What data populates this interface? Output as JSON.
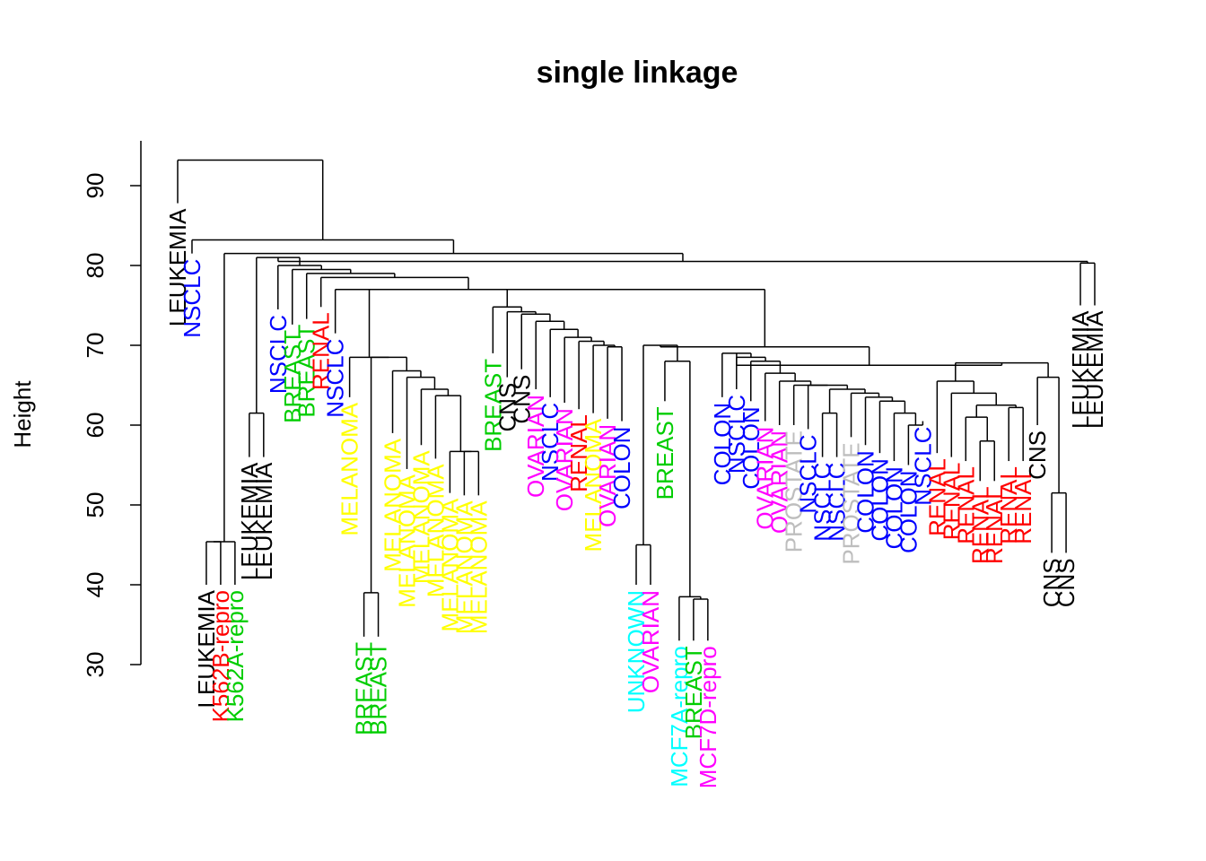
{
  "chart_data": {
    "type": "dendrogram",
    "title": "single linkage",
    "xlabel": "",
    "ylabel": "Height",
    "ylim": [
      27.5,
      95.8
    ],
    "yticks": [
      30,
      40,
      50,
      60,
      70,
      80,
      90
    ],
    "colors": {
      "LEUKEMIA": "#000000",
      "CNS": "#000000",
      "NSCLC": "#0000ff",
      "COLON": "#0000ff",
      "BREAST": "#00cd00",
      "K562A-repro": "#00cd00",
      "RENAL": "#ff0000",
      "K562B-repro": "#ff0000",
      "MELANOMA": "#ffff00",
      "OVARIAN": "#ff00ff",
      "MCF7D-repro": "#ff00ff",
      "PROSTATE": "#bebebe",
      "UNKNOWN": "#00ffff",
      "MCF7A-repro": "#00ffff"
    },
    "leaves": [
      {
        "label": "LEUKEMIA",
        "height": 87.8
      },
      {
        "label": "NSCLC",
        "height": 81.5
      },
      {
        "label": "LEUKEMIA",
        "height": 40.0
      },
      {
        "label": "K562B-repro",
        "height": 40.0
      },
      {
        "label": "K562A-repro",
        "height": 40.0
      },
      {
        "label": "LEUKEMIA",
        "height": 56.0
      },
      {
        "label": "LEUKEMIA",
        "height": 56.0
      },
      {
        "label": "NSCLC",
        "height": 74.5
      },
      {
        "label": "BREAST",
        "height": 72.6
      },
      {
        "label": "BREAST",
        "height": 73.3
      },
      {
        "label": "RENAL",
        "height": 74.8
      },
      {
        "label": "NSCLC",
        "height": 71.5
      },
      {
        "label": "MELANOMA",
        "height": 63.5
      },
      {
        "label": "BREAST",
        "height": 33.5
      },
      {
        "label": "BREAST",
        "height": 33.5
      },
      {
        "label": "MELANOMA",
        "height": 59.0
      },
      {
        "label": "MELANOMA",
        "height": 54.5
      },
      {
        "label": "MELANOMA",
        "height": 57.5
      },
      {
        "label": "MELANOMA",
        "height": 55.8
      },
      {
        "label": "MELANOMA",
        "height": 51.5
      },
      {
        "label": "MELANOMA",
        "height": 51.2
      },
      {
        "label": "MELANOMA",
        "height": 51.2
      },
      {
        "label": "BREAST",
        "height": 69.0
      },
      {
        "label": "CNS",
        "height": 66.0
      },
      {
        "label": "CNS",
        "height": 67.0
      },
      {
        "label": "OVARIAN",
        "height": 64.5
      },
      {
        "label": "NSCLC",
        "height": 63.5
      },
      {
        "label": "OVARIAN",
        "height": 62.8
      },
      {
        "label": "RENAL",
        "height": 62.0
      },
      {
        "label": "MELANOMA",
        "height": 61.5
      },
      {
        "label": "OVARIAN",
        "height": 60.8
      },
      {
        "label": "COLON",
        "height": 60.5
      },
      {
        "label": "UNKNOWN",
        "height": 40.0
      },
      {
        "label": "OVARIAN",
        "height": 40.0
      },
      {
        "label": "BREAST",
        "height": 63.0
      },
      {
        "label": "MCF7A-repro",
        "height": 33.0
      },
      {
        "label": "BREAST",
        "height": 33.0
      },
      {
        "label": "MCF7D-repro",
        "height": 33.0
      },
      {
        "label": "COLON",
        "height": 63.5
      },
      {
        "label": "NSCLC",
        "height": 64.5
      },
      {
        "label": "COLON",
        "height": 63.0
      },
      {
        "label": "OVARIAN",
        "height": 60.5
      },
      {
        "label": "OVARIAN",
        "height": 60.0
      },
      {
        "label": "PROSTATE",
        "height": 60.0
      },
      {
        "label": "NSCLC",
        "height": 59.5
      },
      {
        "label": "NSCLC",
        "height": 56.0
      },
      {
        "label": "NSCLC",
        "height": 56.0
      },
      {
        "label": "PROSTATE",
        "height": 58.5
      },
      {
        "label": "COLON",
        "height": 57.5
      },
      {
        "label": "COLON",
        "height": 56.5
      },
      {
        "label": "COLON",
        "height": 55.5
      },
      {
        "label": "COLON",
        "height": 55.0
      },
      {
        "label": "NSCLC",
        "height": 60.5
      },
      {
        "label": "RENAL",
        "height": 56.5
      },
      {
        "label": "RENAL",
        "height": 56.0
      },
      {
        "label": "RENAL",
        "height": 55.5
      },
      {
        "label": "RENAL",
        "height": 53.0
      },
      {
        "label": "RENAL",
        "height": 53.0
      },
      {
        "label": "RENAL",
        "height": 55.5
      },
      {
        "label": "RENAL",
        "height": 55.5
      },
      {
        "label": "CNS",
        "height": 60.0
      },
      {
        "label": "CNS",
        "height": 44.0
      },
      {
        "label": "CNS",
        "height": 44.0
      },
      {
        "label": "LEUKEMIA",
        "height": 75.0
      },
      {
        "label": "LEUKEMIA",
        "height": 75.0
      }
    ],
    "merges": [
      {
        "children": [
          "leaf:0",
          "merge:63"
        ],
        "height": 93.2
      },
      {
        "children": [
          "leaf:1",
          "merge:62"
        ],
        "height": 83.2
      },
      {
        "children": [
          "merge:3",
          "merge:61"
        ],
        "height": 81.5
      },
      {
        "children": [
          "merge:4",
          "leaf:5"
        ],
        "height": 45.4
      },
      {
        "children": [
          "leaf:2",
          "leaf:3"
        ],
        "height": 45.4
      },
      {
        "children": [
          "leaf:4",
          "leaf:5"
        ],
        "height": 45.0
      },
      {
        "children": [
          "leaf:5",
          "leaf:6"
        ],
        "height": 61.5
      }
    ]
  }
}
